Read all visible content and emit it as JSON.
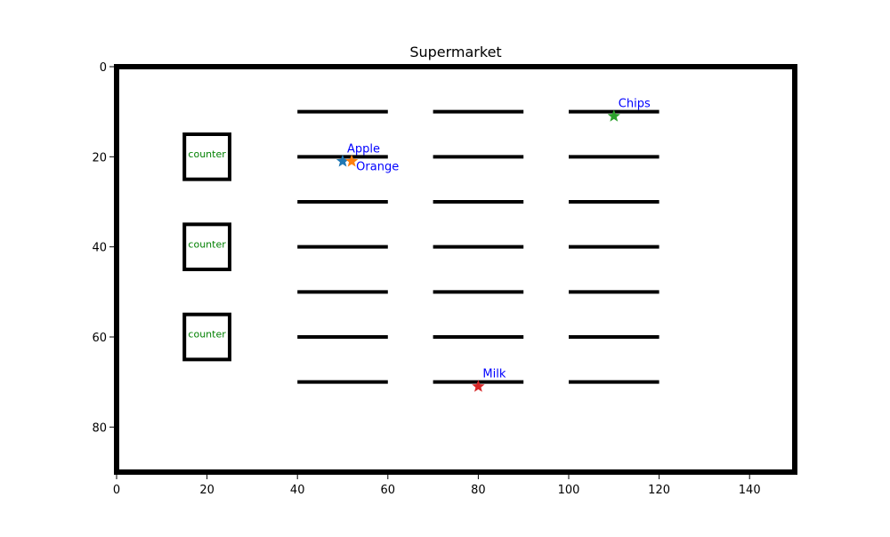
{
  "chart_data": {
    "type": "scatter",
    "title": "Supermarket",
    "xlabel": "",
    "ylabel": "",
    "xlim": [
      0,
      150
    ],
    "ylim": [
      90,
      0
    ],
    "y_inverted": true,
    "x_ticks": [
      0,
      20,
      40,
      60,
      80,
      100,
      120,
      140
    ],
    "y_ticks": [
      0,
      20,
      40,
      60,
      80
    ],
    "grid": false,
    "boundary": {
      "x": [
        0,
        150
      ],
      "y": [
        0,
        90
      ],
      "color": "#000000"
    },
    "shelves": [
      {
        "x1": 40,
        "x2": 60,
        "y": 10
      },
      {
        "x1": 40,
        "x2": 60,
        "y": 20
      },
      {
        "x1": 40,
        "x2": 60,
        "y": 30
      },
      {
        "x1": 40,
        "x2": 60,
        "y": 40
      },
      {
        "x1": 40,
        "x2": 60,
        "y": 50
      },
      {
        "x1": 40,
        "x2": 60,
        "y": 60
      },
      {
        "x1": 40,
        "x2": 60,
        "y": 70
      },
      {
        "x1": 70,
        "x2": 90,
        "y": 10
      },
      {
        "x1": 70,
        "x2": 90,
        "y": 20
      },
      {
        "x1": 70,
        "x2": 90,
        "y": 30
      },
      {
        "x1": 70,
        "x2": 90,
        "y": 40
      },
      {
        "x1": 70,
        "x2": 90,
        "y": 50
      },
      {
        "x1": 70,
        "x2": 90,
        "y": 60
      },
      {
        "x1": 70,
        "x2": 90,
        "y": 70
      },
      {
        "x1": 100,
        "x2": 120,
        "y": 10
      },
      {
        "x1": 100,
        "x2": 120,
        "y": 20
      },
      {
        "x1": 100,
        "x2": 120,
        "y": 30
      },
      {
        "x1": 100,
        "x2": 120,
        "y": 40
      },
      {
        "x1": 100,
        "x2": 120,
        "y": 50
      },
      {
        "x1": 100,
        "x2": 120,
        "y": 60
      },
      {
        "x1": 100,
        "x2": 120,
        "y": 70
      }
    ],
    "counters": [
      {
        "label": "counter",
        "x1": 15,
        "x2": 25,
        "y1": 15,
        "y2": 25
      },
      {
        "label": "counter",
        "x1": 15,
        "x2": 25,
        "y1": 35,
        "y2": 45
      },
      {
        "label": "counter",
        "x1": 15,
        "x2": 25,
        "y1": 55,
        "y2": 65
      }
    ],
    "counter_label_color": "#008000",
    "item_label_color": "#0000ff",
    "items": [
      {
        "name": "Apple",
        "x": 50,
        "y": 21,
        "color": "#1f77b4",
        "label_anchor": "start"
      },
      {
        "name": "Orange",
        "x": 52,
        "y": 21,
        "color": "#ff7f0e",
        "label_anchor": "start-below"
      },
      {
        "name": "Chips",
        "x": 110,
        "y": 11,
        "color": "#2ca02c",
        "label_anchor": "start"
      },
      {
        "name": "Milk",
        "x": 80,
        "y": 71,
        "color": "#d62728",
        "label_anchor": "start"
      }
    ]
  }
}
